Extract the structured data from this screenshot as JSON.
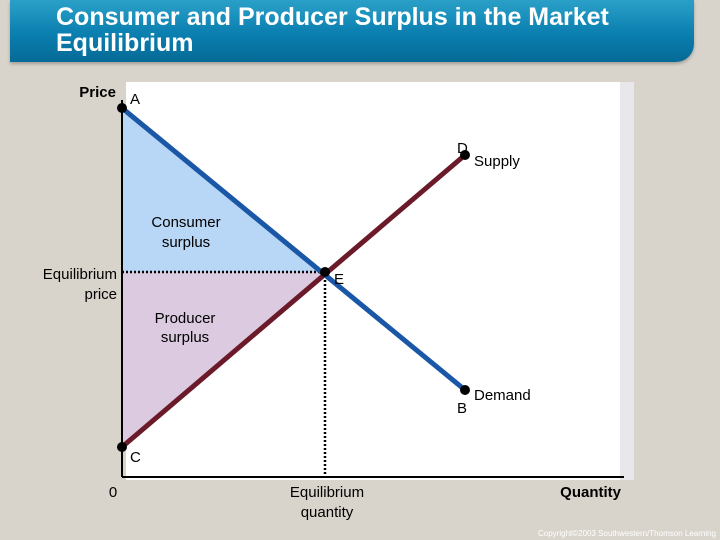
{
  "title": "Consumer and Producer Surplus in the Market Equilibrium",
  "axis": {
    "y_label": "Price",
    "x_label": "Quantity",
    "origin": "0"
  },
  "points": {
    "a": "A",
    "b": "B",
    "c": "C",
    "d": "D",
    "e": "E"
  },
  "curves": {
    "supply": "Supply",
    "demand": "Demand"
  },
  "areas": {
    "consumer": [
      "Consumer",
      "surplus"
    ],
    "producer": [
      "Producer",
      "surplus"
    ]
  },
  "equilibrium": {
    "price": [
      "Equilibrium",
      "price"
    ],
    "quantity": [
      "Equilibrium",
      "quantity"
    ]
  },
  "copyright": "Copyright©2003 Southwestern/Thomson Learning",
  "colors": {
    "title_bar": "#0a7fb0",
    "demand": "#1a57a6",
    "supply": "#6b1a2a",
    "consumer_area": "#b8d6f5",
    "producer_area": "#dccbe0"
  }
}
